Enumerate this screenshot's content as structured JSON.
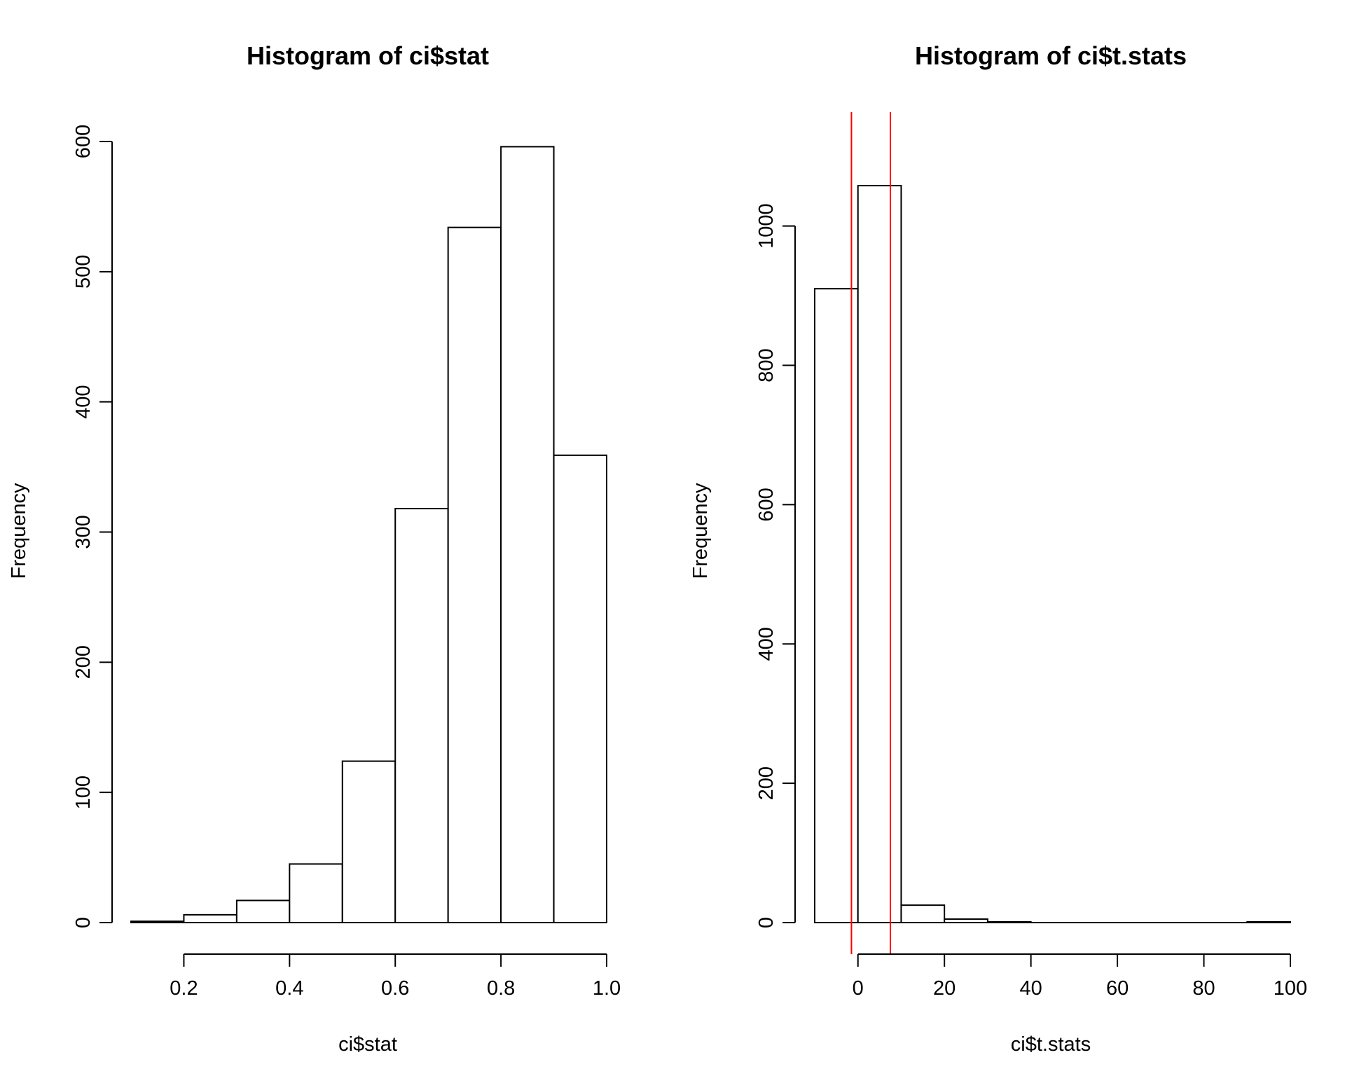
{
  "chart_data": [
    {
      "type": "bar",
      "title": "Histogram of ci$stat",
      "xlabel": "ci$stat",
      "ylabel": "Frequency",
      "bins": [
        [
          0.1,
          0.2
        ],
        [
          0.2,
          0.3
        ],
        [
          0.3,
          0.4
        ],
        [
          0.4,
          0.5
        ],
        [
          0.5,
          0.6
        ],
        [
          0.6,
          0.7
        ],
        [
          0.7,
          0.8
        ],
        [
          0.8,
          0.9
        ],
        [
          0.9,
          1.0
        ]
      ],
      "values": [
        1,
        6,
        17,
        45,
        124,
        318,
        534,
        596,
        359
      ],
      "xlim": [
        0.1,
        1.0
      ],
      "ylim": [
        0,
        600
      ],
      "xticks": [
        0.2,
        0.4,
        0.6,
        0.8,
        1.0
      ],
      "xtick_labels": [
        "0.2",
        "0.4",
        "0.6",
        "0.8",
        "1.0"
      ],
      "yticks": [
        0,
        100,
        200,
        300,
        400,
        500,
        600
      ],
      "ytick_labels": [
        "0",
        "100",
        "200",
        "300",
        "400",
        "500",
        "600"
      ],
      "vlines": [],
      "grid": false
    },
    {
      "type": "bar",
      "title": "Histogram of ci$t.stats",
      "xlabel": "ci$t.stats",
      "ylabel": "Frequency",
      "bins": [
        [
          -10,
          0
        ],
        [
          0,
          10
        ],
        [
          10,
          20
        ],
        [
          20,
          30
        ],
        [
          30,
          40
        ],
        [
          40,
          50
        ],
        [
          50,
          60
        ],
        [
          60,
          70
        ],
        [
          70,
          80
        ],
        [
          80,
          90
        ],
        [
          90,
          100
        ]
      ],
      "values": [
        910,
        1058,
        25,
        5,
        1,
        0,
        0,
        0,
        0,
        0,
        1
      ],
      "xlim": [
        -10,
        100
      ],
      "ylim": [
        0,
        1058
      ],
      "xticks": [
        0,
        20,
        40,
        60,
        80,
        100
      ],
      "xtick_labels": [
        "0",
        "20",
        "40",
        "60",
        "80",
        "100"
      ],
      "yticks": [
        0,
        200,
        400,
        600,
        800,
        1000
      ],
      "ytick_labels": [
        "0",
        "200",
        "400",
        "600",
        "800",
        "1000"
      ],
      "vlines": [
        -1.5,
        7.5
      ],
      "vline_color": "#ff0000",
      "grid": false
    }
  ]
}
